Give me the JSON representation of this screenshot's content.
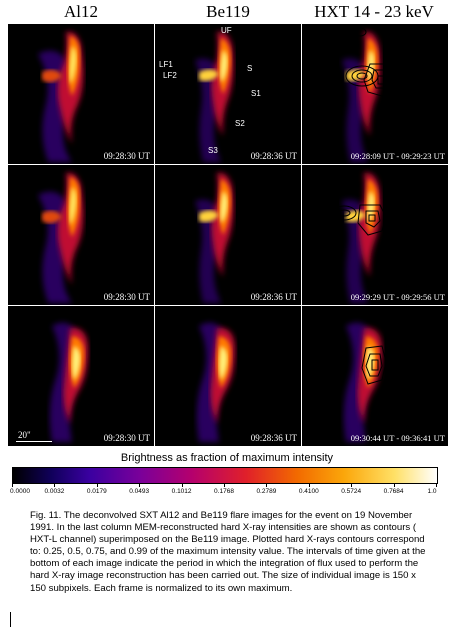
{
  "figure": {
    "columns": [
      "Al12",
      "Be119",
      "HXT 14 - 23 keV"
    ],
    "rows": [
      [
        "09:28:30 UT",
        "09:28:36 UT",
        "09:28:09 UT - 09:29:23 UT"
      ],
      [
        "09:28:30 UT",
        "09:28:36 UT",
        "09:29:29 UT - 09:29:56 UT"
      ],
      [
        "09:28:30 UT",
        "09:28:36 UT",
        "09:30:44 UT - 09:36:41 UT"
      ]
    ],
    "annotations": {
      "uf": "UF",
      "lf1": "LF1",
      "lf2": "LF2",
      "s": "S",
      "s1": "S1",
      "s2": "S2",
      "s3": "S3"
    },
    "scale_label": "20\""
  },
  "colorbar": {
    "title": "Brightness as fraction of maximum intensity",
    "ticks": [
      "0.0000",
      "0.0032",
      "0.0179",
      "0.0493",
      "0.1012",
      "0.1768",
      "0.2789",
      "0.4100",
      "0.5724",
      "0.7684",
      "1.0"
    ]
  },
  "caption": {
    "text": "Fig. 11. The deconvolved SXT Al12 and Be119 flare images for the event on 19 November 1991. In the last column MEM-reconstructed hard X-ray intensities are shown as contours ( HXT-L channel) superimposed on the Be119 image. Plotted hard X-rays contours  correspond to: 0.25, 0.5, 0.75, and 0.99 of the maximum intensity value. The intervals of time given at the bottom of each image indicate the period in which the integration of flux used to perform the hard X-ray image reconstruction has been carried out. The size of individual image is 150 x 150 subpixels. Each frame is normalized to its own maximum."
  },
  "colors": {
    "background": "#000000",
    "hot": "#fff27a",
    "mid": "#ff4a00",
    "cool": "#6a00b0"
  }
}
